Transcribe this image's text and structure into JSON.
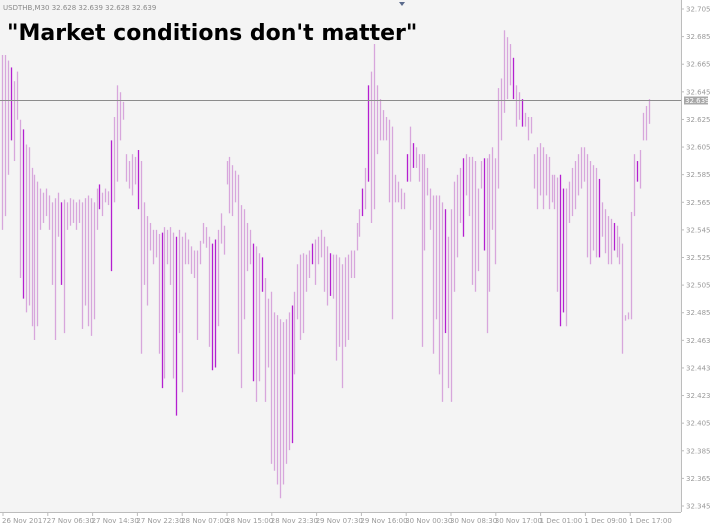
{
  "chart": {
    "symbol_info": "USDTHB,M30  32.628 32.639 32.628 32.639",
    "headline": "\"Market conditions don't matter\"",
    "current_price_label": "32.639"
  },
  "colors": {
    "background": "#f4f4f4",
    "bar": "#d7a6dc",
    "bar_accent": "#b41fd0",
    "price_line": "#8c8c8c",
    "price_tag": "#a8a8a8"
  },
  "chart_data": {
    "type": "bar",
    "style": "ohlc-bars",
    "ylim": [
      32.34,
      32.712
    ],
    "current_price": 32.639,
    "grid": false,
    "y_ticks": [
      "32.705",
      "32.685",
      "32.665",
      "32.645",
      "32.625",
      "32.605",
      "32.585",
      "32.565",
      "32.545",
      "32.525",
      "32.505",
      "32.485",
      "32.463",
      "32.443",
      "32.423",
      "32.405",
      "32.385",
      "32.365",
      "32.345"
    ],
    "x_ticks": [
      "26 Nov 2017",
      "27 Nov 06:30",
      "27 Nov 14:30",
      "27 Nov 22:30",
      "28 Nov 07:00",
      "28 Nov 15:00",
      "28 Nov 23:30",
      "29 Nov 07:30",
      "29 Nov 16:00",
      "30 Nov 00:30",
      "30 Nov 08:30",
      "30 Nov 17:00",
      "1 Dec 01:00",
      "1 Dec 09:00",
      "1 Dec 17:00"
    ],
    "bars": [
      {
        "high": 32.672,
        "low": 32.545
      },
      {
        "high": 32.672,
        "low": 32.555
      },
      {
        "high": 32.668,
        "low": 32.585
      },
      {
        "high": 32.663,
        "low": 32.61
      },
      {
        "high": 32.653,
        "low": 32.595
      },
      {
        "high": 32.66,
        "low": 32.625
      },
      {
        "high": 32.625,
        "low": 32.51
      },
      {
        "high": 32.618,
        "low": 32.495
      },
      {
        "high": 32.607,
        "low": 32.485
      },
      {
        "high": 32.605,
        "low": 32.49
      },
      {
        "high": 32.59,
        "low": 32.475
      },
      {
        "high": 32.585,
        "low": 32.465
      },
      {
        "high": 32.58,
        "low": 32.475
      },
      {
        "high": 32.575,
        "low": 32.545
      },
      {
        "high": 32.572,
        "low": 32.55
      },
      {
        "high": 32.575,
        "low": 32.555
      },
      {
        "high": 32.57,
        "low": 32.545
      },
      {
        "high": 32.565,
        "low": 32.505
      },
      {
        "high": 32.568,
        "low": 32.465
      },
      {
        "high": 32.572,
        "low": 32.54
      },
      {
        "high": 32.565,
        "low": 32.505
      },
      {
        "high": 32.567,
        "low": 32.47
      },
      {
        "high": 32.565,
        "low": 32.545
      },
      {
        "high": 32.568,
        "low": 32.548
      },
      {
        "high": 32.567,
        "low": 32.55
      },
      {
        "high": 32.565,
        "low": 32.545
      },
      {
        "high": 32.567,
        "low": 32.55
      },
      {
        "high": 32.565,
        "low": 32.473
      },
      {
        "high": 32.568,
        "low": 32.49
      },
      {
        "high": 32.57,
        "low": 32.475
      },
      {
        "high": 32.568,
        "low": 32.468
      },
      {
        "high": 32.565,
        "low": 32.48
      },
      {
        "high": 32.575,
        "low": 32.545
      },
      {
        "high": 32.578,
        "low": 32.56
      },
      {
        "high": 32.572,
        "low": 32.555
      },
      {
        "high": 32.575,
        "low": 32.565
      },
      {
        "high": 32.573,
        "low": 32.563
      },
      {
        "high": 32.61,
        "low": 32.515
      },
      {
        "high": 32.627,
        "low": 32.565
      },
      {
        "high": 32.65,
        "low": 32.58
      },
      {
        "high": 32.645,
        "low": 32.61
      },
      {
        "high": 32.638,
        "low": 32.625
      },
      {
        "high": 32.6,
        "low": 32.58
      },
      {
        "high": 32.595,
        "low": 32.575
      },
      {
        "high": 32.6,
        "low": 32.57
      },
      {
        "high": 32.598,
        "low": 32.578
      },
      {
        "high": 32.603,
        "low": 32.56
      },
      {
        "high": 32.595,
        "low": 32.455
      },
      {
        "high": 32.565,
        "low": 32.505
      },
      {
        "high": 32.555,
        "low": 32.49
      },
      {
        "high": 32.55,
        "low": 32.53
      },
      {
        "high": 32.545,
        "low": 32.52
      },
      {
        "high": 32.545,
        "low": 32.525
      },
      {
        "high": 32.542,
        "low": 32.455
      },
      {
        "high": 32.543,
        "low": 32.43
      },
      {
        "high": 32.547,
        "low": 32.437
      },
      {
        "high": 32.545,
        "low": 32.52
      },
      {
        "high": 32.547,
        "low": 32.505
      },
      {
        "high": 32.543,
        "low": 32.437
      },
      {
        "high": 32.54,
        "low": 32.41
      },
      {
        "high": 32.545,
        "low": 32.47
      },
      {
        "high": 32.54,
        "low": 32.427
      },
      {
        "high": 32.543,
        "low": 32.52
      },
      {
        "high": 32.538,
        "low": 32.52
      },
      {
        "high": 32.533,
        "low": 32.513
      },
      {
        "high": 32.53,
        "low": 32.51
      },
      {
        "high": 32.53,
        "low": 32.465
      },
      {
        "high": 32.537,
        "low": 32.52
      },
      {
        "high": 32.55,
        "low": 32.535
      },
      {
        "high": 32.547,
        "low": 32.532
      },
      {
        "high": 32.54,
        "low": 32.46
      },
      {
        "high": 32.535,
        "low": 32.443
      },
      {
        "high": 32.538,
        "low": 32.445
      },
      {
        "high": 32.545,
        "low": 32.475
      },
      {
        "high": 32.557,
        "low": 32.535
      },
      {
        "high": 32.548,
        "low": 32.527
      },
      {
        "high": 32.595,
        "low": 32.578
      },
      {
        "high": 32.598,
        "low": 32.557
      },
      {
        "high": 32.592,
        "low": 32.555
      },
      {
        "high": 32.588,
        "low": 32.565
      },
      {
        "high": 32.585,
        "low": 32.455
      },
      {
        "high": 32.563,
        "low": 32.43
      },
      {
        "high": 32.56,
        "low": 32.48
      },
      {
        "high": 32.55,
        "low": 32.515
      },
      {
        "high": 32.545,
        "low": 32.52
      },
      {
        "high": 32.535,
        "low": 32.435
      },
      {
        "high": 32.533,
        "low": 32.42
      },
      {
        "high": 32.528,
        "low": 32.435
      },
      {
        "high": 32.525,
        "low": 32.5
      },
      {
        "high": 32.51,
        "low": 32.42
      },
      {
        "high": 32.495,
        "low": 32.445
      },
      {
        "high": 32.5,
        "low": 32.375
      },
      {
        "high": 32.485,
        "low": 32.37
      },
      {
        "high": 32.483,
        "low": 32.36
      },
      {
        "high": 32.48,
        "low": 32.35
      },
      {
        "high": 32.478,
        "low": 32.36
      },
      {
        "high": 32.48,
        "low": 32.375
      },
      {
        "high": 32.485,
        "low": 32.385
      },
      {
        "high": 32.49,
        "low": 32.39
      },
      {
        "high": 32.5,
        "low": 32.44
      },
      {
        "high": 32.52,
        "low": 32.48
      },
      {
        "high": 32.527,
        "low": 32.465
      },
      {
        "high": 32.528,
        "low": 32.47
      },
      {
        "high": 32.527,
        "low": 32.5
      },
      {
        "high": 32.53,
        "low": 32.51
      },
      {
        "high": 32.535,
        "low": 32.52
      },
      {
        "high": 32.538,
        "low": 32.505
      },
      {
        "high": 32.54,
        "low": 32.52
      },
      {
        "high": 32.545,
        "low": 32.525
      },
      {
        "high": 32.54,
        "low": 32.5
      },
      {
        "high": 32.533,
        "low": 32.49
      },
      {
        "high": 32.528,
        "low": 32.497
      },
      {
        "high": 32.527,
        "low": 32.495
      },
      {
        "high": 32.527,
        "low": 32.45
      },
      {
        "high": 32.525,
        "low": 32.46
      },
      {
        "high": 32.52,
        "low": 32.43
      },
      {
        "high": 32.525,
        "low": 32.46
      },
      {
        "high": 32.527,
        "low": 32.465
      },
      {
        "high": 32.53,
        "low": 32.51
      },
      {
        "high": 32.53,
        "low": 32.51
      },
      {
        "high": 32.55,
        "low": 32.53
      },
      {
        "high": 32.56,
        "low": 32.54
      },
      {
        "high": 32.575,
        "low": 32.555
      },
      {
        "high": 32.59,
        "low": 32.56
      },
      {
        "high": 32.65,
        "low": 32.58
      },
      {
        "high": 32.66,
        "low": 32.55
      },
      {
        "high": 32.68,
        "low": 32.56
      },
      {
        "high": 32.65,
        "low": 32.6
      },
      {
        "high": 32.64,
        "low": 32.61
      },
      {
        "high": 32.632,
        "low": 32.61
      },
      {
        "high": 32.627,
        "low": 32.61
      },
      {
        "high": 32.625,
        "low": 32.565
      },
      {
        "high": 32.62,
        "low": 32.48
      },
      {
        "high": 32.585,
        "low": 32.565
      },
      {
        "high": 32.58,
        "low": 32.565
      },
      {
        "high": 32.575,
        "low": 32.56
      },
      {
        "high": 32.572,
        "low": 32.56
      },
      {
        "high": 32.6,
        "low": 32.58
      },
      {
        "high": 32.62,
        "low": 32.58
      },
      {
        "high": 32.608,
        "low": 32.59
      },
      {
        "high": 32.605,
        "low": 32.59
      },
      {
        "high": 32.6,
        "low": 32.58
      },
      {
        "high": 32.6,
        "low": 32.46
      },
      {
        "high": 32.6,
        "low": 32.53
      },
      {
        "high": 32.59,
        "low": 32.57
      },
      {
        "high": 32.575,
        "low": 32.545
      },
      {
        "high": 32.57,
        "low": 32.455
      },
      {
        "high": 32.57,
        "low": 32.48
      },
      {
        "high": 32.57,
        "low": 32.44
      },
      {
        "high": 32.565,
        "low": 32.42
      },
      {
        "high": 32.56,
        "low": 32.47
      },
      {
        "high": 32.54,
        "low": 32.43
      },
      {
        "high": 32.56,
        "low": 32.42
      },
      {
        "high": 32.58,
        "low": 32.5
      },
      {
        "high": 32.585,
        "low": 32.525
      },
      {
        "high": 32.59,
        "low": 32.55
      },
      {
        "high": 32.597,
        "low": 32.54
      },
      {
        "high": 32.6,
        "low": 32.57
      },
      {
        "high": 32.598,
        "low": 32.555
      },
      {
        "high": 32.598,
        "low": 32.505
      },
      {
        "high": 32.595,
        "low": 32.5
      },
      {
        "high": 32.575,
        "low": 32.515
      },
      {
        "high": 32.595,
        "low": 32.575
      },
      {
        "high": 32.597,
        "low": 32.53
      },
      {
        "high": 32.597,
        "low": 32.47
      },
      {
        "high": 32.6,
        "low": 32.5
      },
      {
        "high": 32.605,
        "low": 32.545
      },
      {
        "high": 32.597,
        "low": 32.52
      },
      {
        "high": 32.648,
        "low": 32.575
      },
      {
        "high": 32.655,
        "low": 32.61
      },
      {
        "high": 32.69,
        "low": 32.63
      },
      {
        "high": 32.685,
        "low": 32.64
      },
      {
        "high": 32.68,
        "low": 32.65
      },
      {
        "high": 32.67,
        "low": 32.64
      },
      {
        "high": 32.65,
        "low": 32.62
      },
      {
        "high": 32.645,
        "low": 32.625
      },
      {
        "high": 32.64,
        "low": 32.62
      },
      {
        "high": 32.63,
        "low": 32.62
      },
      {
        "high": 32.627,
        "low": 32.61
      },
      {
        "high": 32.627,
        "low": 32.615
      },
      {
        "high": 32.6,
        "low": 32.575
      },
      {
        "high": 32.605,
        "low": 32.56
      },
      {
        "high": 32.608,
        "low": 32.57
      },
      {
        "high": 32.605,
        "low": 32.56
      },
      {
        "high": 32.6,
        "low": 32.57
      },
      {
        "high": 32.598,
        "low": 32.56
      },
      {
        "high": 32.585,
        "low": 32.565
      },
      {
        "high": 32.585,
        "low": 32.56
      },
      {
        "high": 32.583,
        "low": 32.5
      },
      {
        "high": 32.585,
        "low": 32.475
      },
      {
        "high": 32.575,
        "low": 32.485
      },
      {
        "high": 32.575,
        "low": 32.475
      },
      {
        "high": 32.58,
        "low": 32.55
      },
      {
        "high": 32.59,
        "low": 32.555
      },
      {
        "high": 32.595,
        "low": 32.56
      },
      {
        "high": 32.6,
        "low": 32.57
      },
      {
        "high": 32.605,
        "low": 32.575
      },
      {
        "high": 32.605,
        "low": 32.58
      },
      {
        "high": 32.6,
        "low": 32.525
      },
      {
        "high": 32.595,
        "low": 32.52
      },
      {
        "high": 32.592,
        "low": 32.53
      },
      {
        "high": 32.59,
        "low": 32.525
      },
      {
        "high": 32.582,
        "low": 32.525
      },
      {
        "high": 32.565,
        "low": 32.54
      },
      {
        "high": 32.56,
        "low": 32.528
      },
      {
        "high": 32.555,
        "low": 32.52
      },
      {
        "high": 32.553,
        "low": 32.52
      },
      {
        "high": 32.55,
        "low": 32.53
      },
      {
        "high": 32.548,
        "low": 32.525
      },
      {
        "high": 32.54,
        "low": 32.52
      },
      {
        "high": 32.535,
        "low": 32.455
      },
      {
        "high": 32.483,
        "low": 32.479
      },
      {
        "high": 32.485,
        "low": 32.48
      },
      {
        "high": 32.558,
        "low": 32.48
      },
      {
        "high": 32.6,
        "low": 32.555
      },
      {
        "high": 32.595,
        "low": 32.58
      },
      {
        "high": 32.603,
        "low": 32.575
      },
      {
        "high": 32.63,
        "low": 32.61
      },
      {
        "high": 32.635,
        "low": 32.61
      },
      {
        "high": 32.64,
        "low": 32.622
      }
    ]
  }
}
